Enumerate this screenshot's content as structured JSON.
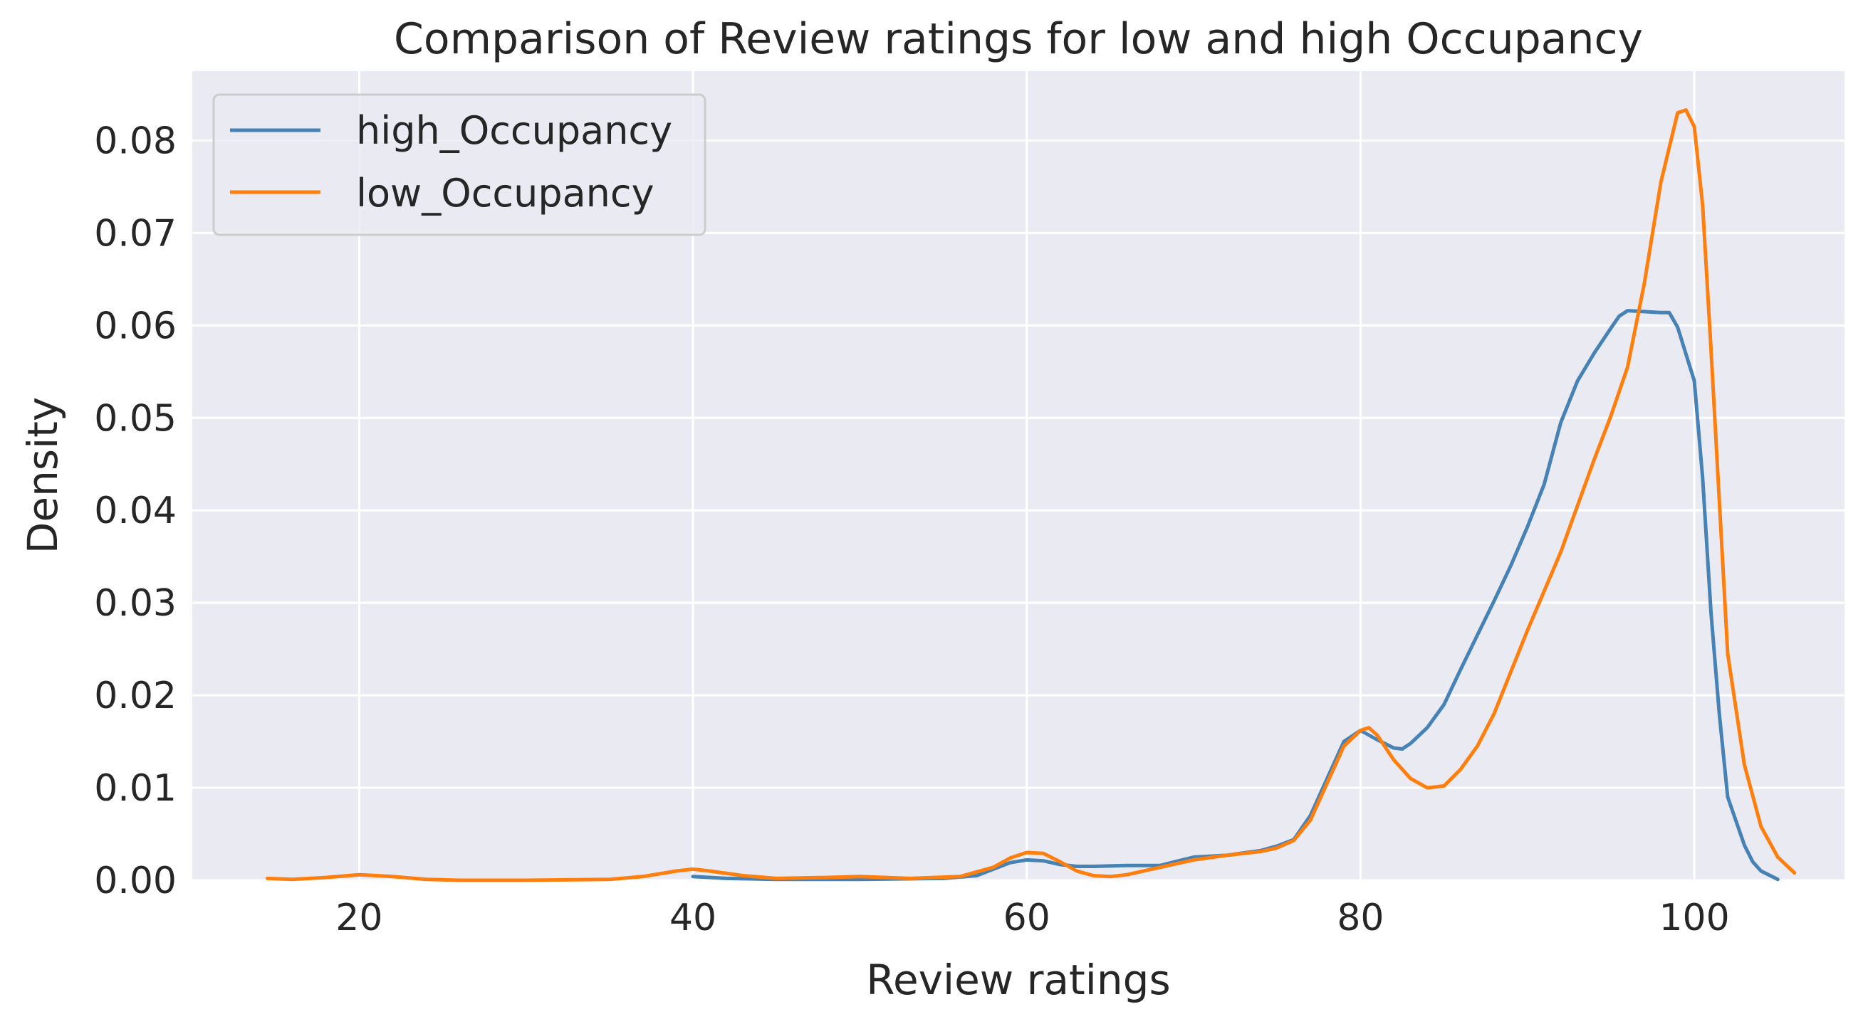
{
  "chart_data": {
    "type": "line",
    "title": "Comparison of Review ratings for low and high Occupancy",
    "xlabel": "Review ratings",
    "ylabel": "Density",
    "xlim": [
      10,
      109
    ],
    "ylim": [
      0,
      0.0875
    ],
    "xticks": [
      20,
      40,
      60,
      80,
      100
    ],
    "yticks": [
      0.0,
      0.01,
      0.02,
      0.03,
      0.04,
      0.05,
      0.06,
      0.07,
      0.08
    ],
    "ytick_labels": [
      "0.00",
      "0.01",
      "0.02",
      "0.03",
      "0.04",
      "0.05",
      "0.06",
      "0.07",
      "0.08"
    ],
    "xtick_labels": [
      "20",
      "40",
      "60",
      "80",
      "100"
    ],
    "grid": true,
    "legend_position": "top-left",
    "background": "#eaeaf2",
    "series": [
      {
        "name": "high_Occupancy",
        "color": "#4682b4",
        "x": [
          40,
          42,
          45,
          50,
          55,
          57,
          58,
          59,
          60,
          61,
          62,
          63,
          64,
          66,
          68,
          70,
          72,
          74,
          75,
          76,
          77,
          78,
          79,
          80,
          81,
          82,
          82.5,
          83,
          84,
          85,
          86,
          87,
          88,
          89,
          90,
          91,
          92,
          93,
          94,
          95,
          95.5,
          96,
          97,
          98,
          98.5,
          99,
          100,
          100.5,
          101,
          101.5,
          102,
          103,
          103.5,
          104,
          105
        ],
        "y": [
          0.0004,
          0.0002,
          0.0001,
          0.0001,
          0.0002,
          0.0005,
          0.0012,
          0.0019,
          0.0022,
          0.0021,
          0.0017,
          0.0015,
          0.0015,
          0.0016,
          0.0016,
          0.0025,
          0.0027,
          0.0032,
          0.0037,
          0.0044,
          0.007,
          0.011,
          0.015,
          0.0162,
          0.0152,
          0.0143,
          0.0142,
          0.0148,
          0.0165,
          0.019,
          0.0228,
          0.0265,
          0.0302,
          0.034,
          0.0382,
          0.0428,
          0.0495,
          0.054,
          0.057,
          0.0597,
          0.061,
          0.0616,
          0.0615,
          0.0614,
          0.0614,
          0.0598,
          0.054,
          0.0435,
          0.029,
          0.018,
          0.009,
          0.0038,
          0.002,
          0.001,
          0.0001
        ]
      },
      {
        "name": "low_Occupancy",
        "color": "#ff7f0e",
        "x": [
          14.5,
          16,
          18,
          20,
          22,
          24,
          26,
          30,
          35,
          37,
          39,
          40,
          41,
          43,
          45,
          48,
          50,
          53,
          56,
          58,
          59,
          60,
          61,
          62,
          63,
          64,
          65,
          66,
          68,
          70,
          72,
          74,
          75,
          76,
          77,
          78,
          79,
          80,
          80.5,
          81,
          82,
          83,
          84,
          85,
          86,
          87,
          88,
          89,
          90,
          92,
          94,
          95,
          96,
          97,
          98,
          99,
          99.5,
          100,
          100.5,
          101,
          102,
          103,
          104,
          105,
          106
        ],
        "y": [
          0.0002,
          0.0001,
          0.0003,
          0.0006,
          0.0004,
          0.0001,
          0.0,
          0.0,
          0.0001,
          0.0004,
          0.001,
          0.0012,
          0.001,
          0.0005,
          0.0002,
          0.0003,
          0.0004,
          0.0002,
          0.0004,
          0.0014,
          0.0024,
          0.003,
          0.0029,
          0.002,
          0.001,
          0.0005,
          0.0004,
          0.0006,
          0.0014,
          0.0022,
          0.0027,
          0.0031,
          0.0035,
          0.0043,
          0.0065,
          0.0105,
          0.0145,
          0.0162,
          0.0165,
          0.0157,
          0.013,
          0.011,
          0.01,
          0.0102,
          0.012,
          0.0145,
          0.018,
          0.0225,
          0.027,
          0.0355,
          0.0455,
          0.0502,
          0.0555,
          0.0645,
          0.0755,
          0.083,
          0.0833,
          0.0815,
          0.073,
          0.0575,
          0.0245,
          0.0125,
          0.0058,
          0.0025,
          0.0008
        ]
      }
    ]
  }
}
